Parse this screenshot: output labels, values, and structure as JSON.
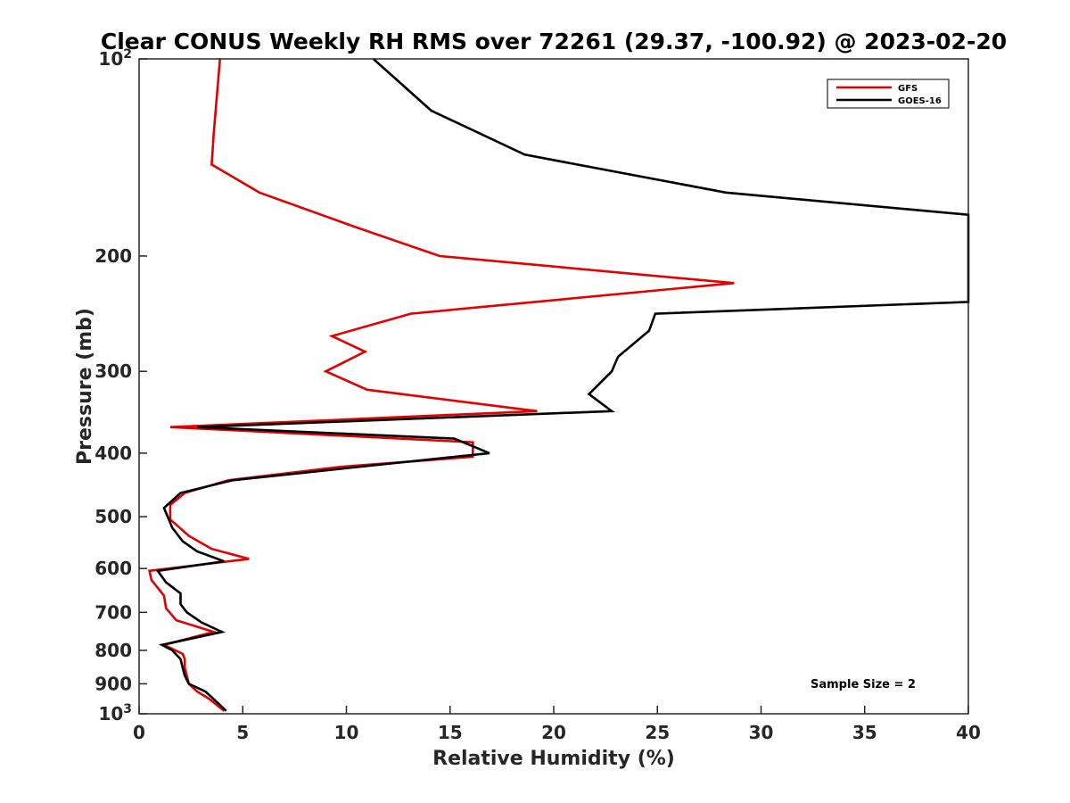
{
  "chart_data": {
    "type": "line",
    "title": "Clear CONUS Weekly RH RMS over 72261 (29.37, -100.92) @ 2023-02-20",
    "xlabel": "Relative Humidity (%)",
    "ylabel": "Pressure (mb)",
    "xlim": [
      0,
      40
    ],
    "ylim": [
      100,
      1000
    ],
    "y_scale": "log",
    "y_reversed": true,
    "x_ticks": [
      0,
      5,
      10,
      15,
      20,
      25,
      30,
      35,
      40
    ],
    "y_ticks": [
      {
        "value": 100,
        "base": "10",
        "exp": "2"
      },
      {
        "value": 200,
        "label": "200"
      },
      {
        "value": 300,
        "label": "300"
      },
      {
        "value": 400,
        "label": "400"
      },
      {
        "value": 500,
        "label": "500"
      },
      {
        "value": 600,
        "label": "600"
      },
      {
        "value": 700,
        "label": "700"
      },
      {
        "value": 800,
        "label": "800"
      },
      {
        "value": 900,
        "label": "900"
      },
      {
        "value": 1000,
        "base": "10",
        "exp": "3"
      }
    ],
    "grid": false,
    "legend_position": "top-right",
    "annotation": "Sample Size = 2",
    "series": [
      {
        "name": "GFS",
        "color": "#e00000",
        "points": [
          [
            4.1,
            990
          ],
          [
            3.4,
            950
          ],
          [
            2.8,
            925
          ],
          [
            2.4,
            900
          ],
          [
            2.3,
            875
          ],
          [
            2.2,
            850
          ],
          [
            2.2,
            825
          ],
          [
            2.1,
            810
          ],
          [
            1.2,
            785
          ],
          [
            3.6,
            750
          ],
          [
            1.8,
            720
          ],
          [
            1.3,
            690
          ],
          [
            1.2,
            660
          ],
          [
            0.6,
            625
          ],
          [
            0.5,
            605
          ],
          [
            5.3,
            580
          ],
          [
            3.5,
            560
          ],
          [
            2.4,
            535
          ],
          [
            1.5,
            505
          ],
          [
            1.5,
            480
          ],
          [
            2.2,
            460
          ],
          [
            4.3,
            440
          ],
          [
            9.6,
            420
          ],
          [
            16.1,
            405
          ],
          [
            16.1,
            385
          ],
          [
            1.5,
            365
          ],
          [
            19.2,
            345
          ],
          [
            11,
            320
          ],
          [
            9,
            300
          ],
          [
            10.9,
            280
          ],
          [
            9.3,
            265
          ],
          [
            13.1,
            245
          ],
          [
            28.7,
            220
          ],
          [
            14.5,
            200
          ],
          [
            10.3,
            180
          ],
          [
            5.8,
            160
          ],
          [
            3.5,
            145
          ],
          [
            3.6,
            130
          ],
          [
            3.9,
            100
          ]
        ]
      },
      {
        "name": "GOES-16",
        "color": "#000000",
        "points": [
          [
            4.2,
            990
          ],
          [
            3.6,
            950
          ],
          [
            3.2,
            925
          ],
          [
            2.4,
            900
          ],
          [
            2.2,
            875
          ],
          [
            2.1,
            850
          ],
          [
            2.0,
            825
          ],
          [
            1.6,
            800
          ],
          [
            1.1,
            785
          ],
          [
            4.0,
            750
          ],
          [
            3.0,
            725
          ],
          [
            2.3,
            700
          ],
          [
            2.0,
            680
          ],
          [
            2.0,
            655
          ],
          [
            1.3,
            630
          ],
          [
            0.9,
            605
          ],
          [
            4.1,
            585
          ],
          [
            2.8,
            565
          ],
          [
            2.1,
            545
          ],
          [
            1.6,
            520
          ],
          [
            1.2,
            485
          ],
          [
            2.0,
            460
          ],
          [
            4.5,
            440
          ],
          [
            10.5,
            420
          ],
          [
            16.9,
            400
          ],
          [
            15.2,
            380
          ],
          [
            2.8,
            365
          ],
          [
            22.8,
            345
          ],
          [
            21.7,
            325
          ],
          [
            22.8,
            300
          ],
          [
            23.1,
            285
          ],
          [
            24.6,
            260
          ],
          [
            24.9,
            245
          ],
          [
            40,
            235
          ],
          [
            40,
            173
          ],
          [
            28.3,
            160
          ],
          [
            18.6,
            140
          ],
          [
            14.1,
            120
          ],
          [
            11.3,
            100
          ]
        ]
      }
    ]
  }
}
